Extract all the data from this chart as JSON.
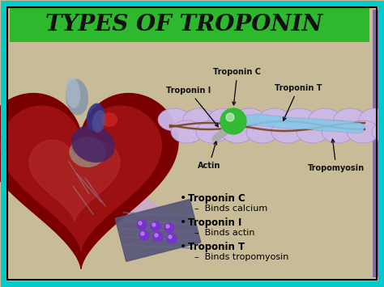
{
  "title": "TYPES OF TROPONIN",
  "title_fontsize": 20,
  "title_color": "#111111",
  "title_bg_color": "#2db82d",
  "bg_color": "#c8bc98",
  "outer_border_color": "#00cccc",
  "inner_border_color": "#000000",
  "bullet_items": [
    {
      "bold": "Troponin C",
      "detail": "–  Binds calcium"
    },
    {
      "bold": "Troponin I",
      "detail": "–  Binds actin"
    },
    {
      "bold": "Troponin T",
      "detail": "–  Binds tropomyosin"
    }
  ],
  "actin_color": "#ccb8e8",
  "actin_edge_color": "#aa88cc",
  "tropomyosin_color": "#7a4520",
  "troponin_c_color": "#33bb33",
  "troponin_t_color": "#88ccee",
  "troponin_i_color": "#aaaaaa",
  "heart_dark": "#7a0000",
  "heart_mid": "#9b1010",
  "heart_light": "#b83030",
  "vessel_dark": "#333388",
  "vessel_mid": "#7777bb",
  "muscle_bg": "#555577",
  "muscle_stripe": "#666688",
  "muscle_dot": "#7733cc",
  "beam_color": "#cc99ff"
}
